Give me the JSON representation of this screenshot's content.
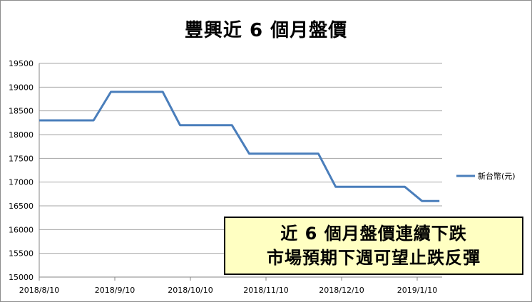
{
  "chart_data": {
    "type": "line",
    "title": "豐興近 6 個月盤價",
    "x_tick_labels": [
      "2018/8/10",
      "2018/9/10",
      "2018/10/10",
      "2018/11/10",
      "2018/12/10",
      "2019/1/10"
    ],
    "y_tick_labels": [
      "15000",
      "15500",
      "16000",
      "16500",
      "17000",
      "17500",
      "18000",
      "18500",
      "19000",
      "19500"
    ],
    "ylim": [
      15000,
      19500
    ],
    "grid": "horizontal",
    "legend_position": "right",
    "series": [
      {
        "name": "新台幣(元)",
        "color": "#4a7ebb",
        "points": [
          [
            "2018-08-10",
            18300
          ],
          [
            "2018-09-01",
            18300
          ],
          [
            "2018-09-08",
            18900
          ],
          [
            "2018-09-29",
            18900
          ],
          [
            "2018-10-06",
            18200
          ],
          [
            "2018-10-27",
            18200
          ],
          [
            "2018-11-03",
            17600
          ],
          [
            "2018-12-01",
            17600
          ],
          [
            "2018-12-08",
            16900
          ],
          [
            "2019-01-05",
            16900
          ],
          [
            "2019-01-12",
            16600
          ],
          [
            "2019-01-19",
            16600
          ]
        ]
      }
    ]
  },
  "annotation": {
    "line1": "近 6 個月盤價連續下跌",
    "line2": "市場預期下週可望止跌反彈",
    "background": "#ffffc2"
  }
}
